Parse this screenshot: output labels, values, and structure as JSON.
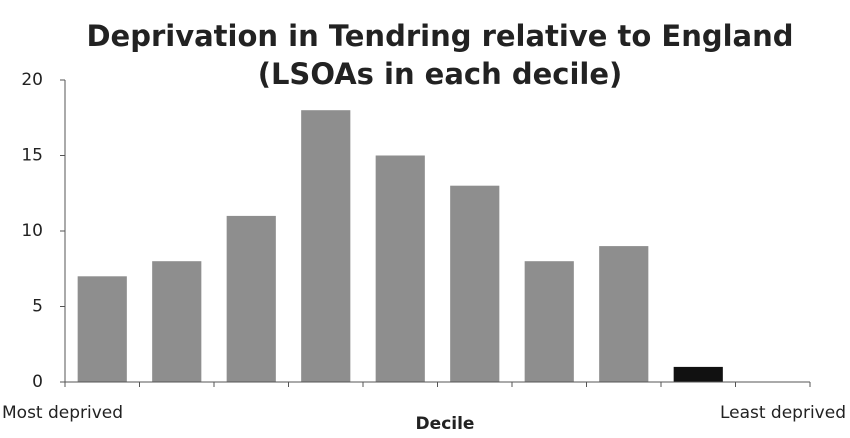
{
  "chart_data": {
    "type": "bar",
    "title": [
      "Deprivation in Tendring relative to England",
      "(LSOAs in each decile)"
    ],
    "x_label": "Decile",
    "categories": [
      "Most deprived",
      null,
      null,
      null,
      null,
      null,
      null,
      null,
      null,
      "Least deprived"
    ],
    "values": [
      7,
      8,
      11,
      18,
      15,
      13,
      8,
      9,
      1,
      0
    ],
    "colors": [
      "#8e8e8e",
      "#8e8e8e",
      "#8e8e8e",
      "#8e8e8e",
      "#8e8e8e",
      "#8e8e8e",
      "#8e8e8e",
      "#8e8e8e",
      "#111111",
      "#8e8e8e"
    ],
    "ylim": [
      0,
      20
    ],
    "yticks": [
      0,
      5,
      10,
      15,
      20
    ],
    "grid": false
  }
}
